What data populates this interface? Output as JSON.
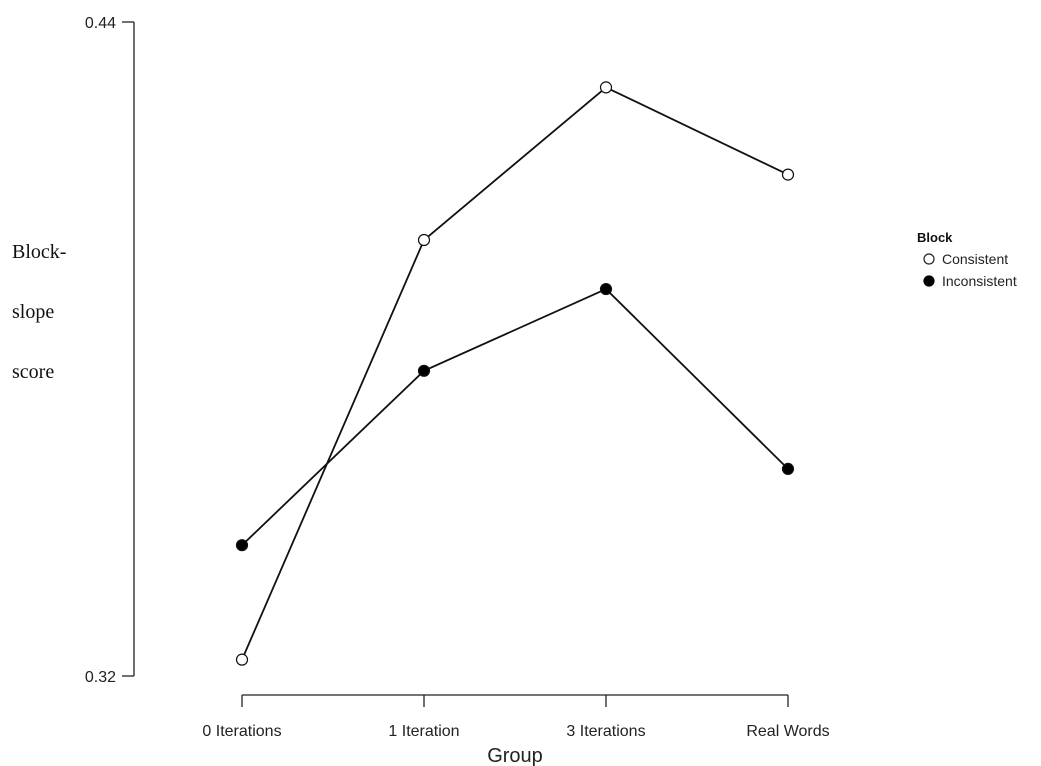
{
  "chart_data": {
    "type": "line",
    "xlabel": "Group",
    "ylabel_lines": [
      "Block-",
      "slope",
      "score"
    ],
    "categories": [
      "0 Iterations",
      "1 Iteration",
      "3 Iterations",
      "Real Words"
    ],
    "ylim": [
      0.32,
      0.44
    ],
    "yticks": [
      "0.44",
      "0.32"
    ],
    "grid": false,
    "legend": {
      "title": "Block",
      "position": "right"
    },
    "series": [
      {
        "name": "Consistent",
        "marker": "open-circle",
        "values": [
          0.323,
          0.4,
          0.428,
          0.412
        ]
      },
      {
        "name": "Inconsistent",
        "marker": "filled-circle",
        "values": [
          0.344,
          0.376,
          0.391,
          0.358
        ]
      }
    ],
    "line_color": "#111111",
    "marker_fill_open": "#ffffff",
    "marker_fill_filled": "#000000"
  }
}
